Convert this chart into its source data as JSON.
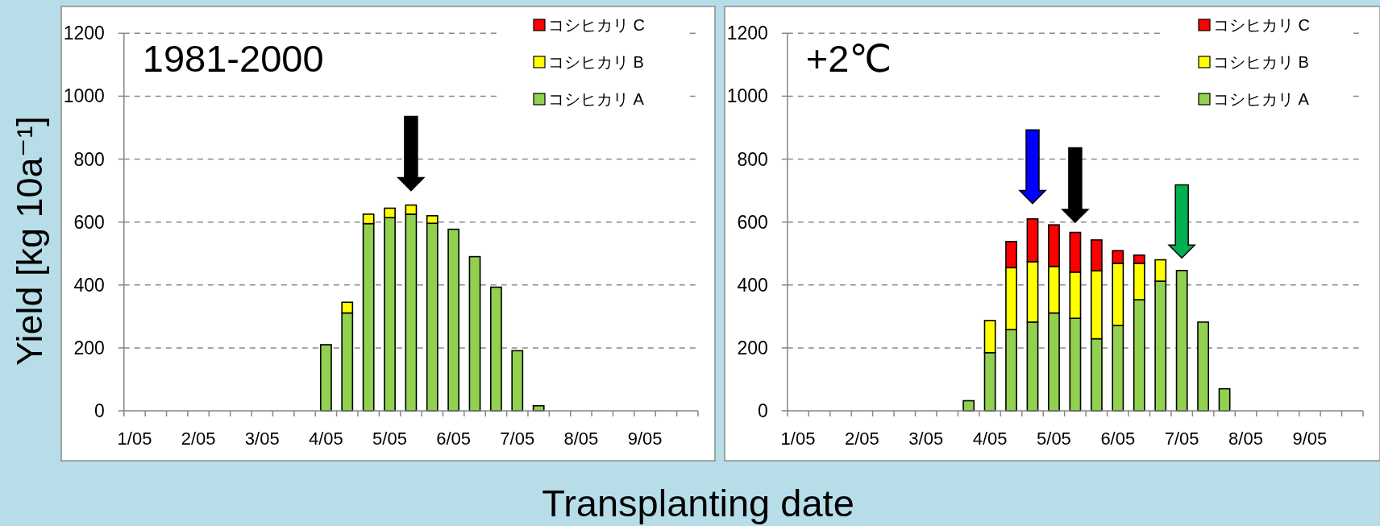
{
  "chart_data": [
    {
      "type": "bar",
      "stacked": true,
      "title": "1981-2000",
      "ylabel": "Yield [kg 10a⁻¹]",
      "xlabel": "Transplanting date",
      "categories": [
        "1/05",
        null,
        null,
        "2/05",
        null,
        null,
        "3/05",
        null,
        null,
        "4/05",
        null,
        null,
        "5/05",
        null,
        null,
        "6/05",
        null,
        null,
        "7/05",
        null,
        null,
        "8/05",
        null,
        null,
        "9/05",
        null,
        null
      ],
      "series": [
        {
          "name": "コシヒカリ A",
          "color": "#92d050",
          "values": [
            null,
            null,
            null,
            null,
            null,
            null,
            null,
            null,
            null,
            210,
            311,
            595,
            614,
            625,
            596,
            577,
            490,
            393,
            191,
            16,
            null,
            null,
            null,
            null,
            null,
            null,
            null
          ]
        },
        {
          "name": "コシヒカリ B",
          "color": "#ffff00",
          "values": [
            null,
            null,
            null,
            null,
            null,
            null,
            null,
            null,
            null,
            null,
            34,
            30,
            30,
            29,
            24,
            null,
            null,
            null,
            null,
            null,
            null,
            null,
            null,
            null,
            null,
            null,
            null
          ]
        },
        {
          "name": "コシヒカリ C",
          "color": "#ff0000",
          "values": [
            null,
            null,
            null,
            null,
            null,
            null,
            null,
            null,
            null,
            null,
            null,
            null,
            null,
            null,
            null,
            null,
            null,
            null,
            null,
            null,
            null,
            null,
            null,
            null,
            null,
            null,
            null
          ]
        }
      ],
      "ylim": [
        0,
        1200
      ],
      "yticks": [
        0,
        200,
        400,
        600,
        800,
        1000,
        1200
      ],
      "grid": "y",
      "legend": "top right"
    },
    {
      "type": "bar",
      "stacked": true,
      "title": "+2℃",
      "categories": [
        "1/05",
        null,
        null,
        "2/05",
        null,
        null,
        "3/05",
        null,
        null,
        "4/05",
        null,
        null,
        "5/05",
        null,
        null,
        "6/05",
        null,
        null,
        "7/05",
        null,
        null,
        "8/05",
        null,
        null,
        "9/05",
        null,
        null
      ],
      "series": [
        {
          "name": "コシヒカリ A",
          "color": "#92d050",
          "values": [
            null,
            null,
            null,
            null,
            null,
            null,
            null,
            null,
            32,
            185,
            258,
            282,
            311,
            294,
            229,
            271,
            353,
            412,
            446,
            282,
            70,
            null,
            null,
            null,
            null,
            null,
            null
          ]
        },
        {
          "name": "コシヒカリ B",
          "color": "#ffff00",
          "values": [
            null,
            null,
            null,
            null,
            null,
            null,
            null,
            null,
            null,
            102,
            197,
            192,
            148,
            147,
            216,
            198,
            116,
            68,
            null,
            null,
            null,
            null,
            null,
            null,
            null,
            null,
            null
          ]
        },
        {
          "name": "コシヒカリ C",
          "color": "#ff0000",
          "values": [
            null,
            null,
            null,
            null,
            null,
            null,
            null,
            null,
            null,
            null,
            83,
            136,
            132,
            126,
            98,
            40,
            26,
            null,
            null,
            null,
            null,
            null,
            null,
            null,
            null,
            null,
            null
          ]
        }
      ],
      "ylim": [
        0,
        1200
      ],
      "yticks": [
        0,
        200,
        400,
        600,
        800,
        1000,
        1200
      ],
      "grid": "y",
      "legend": "top right"
    }
  ]
}
